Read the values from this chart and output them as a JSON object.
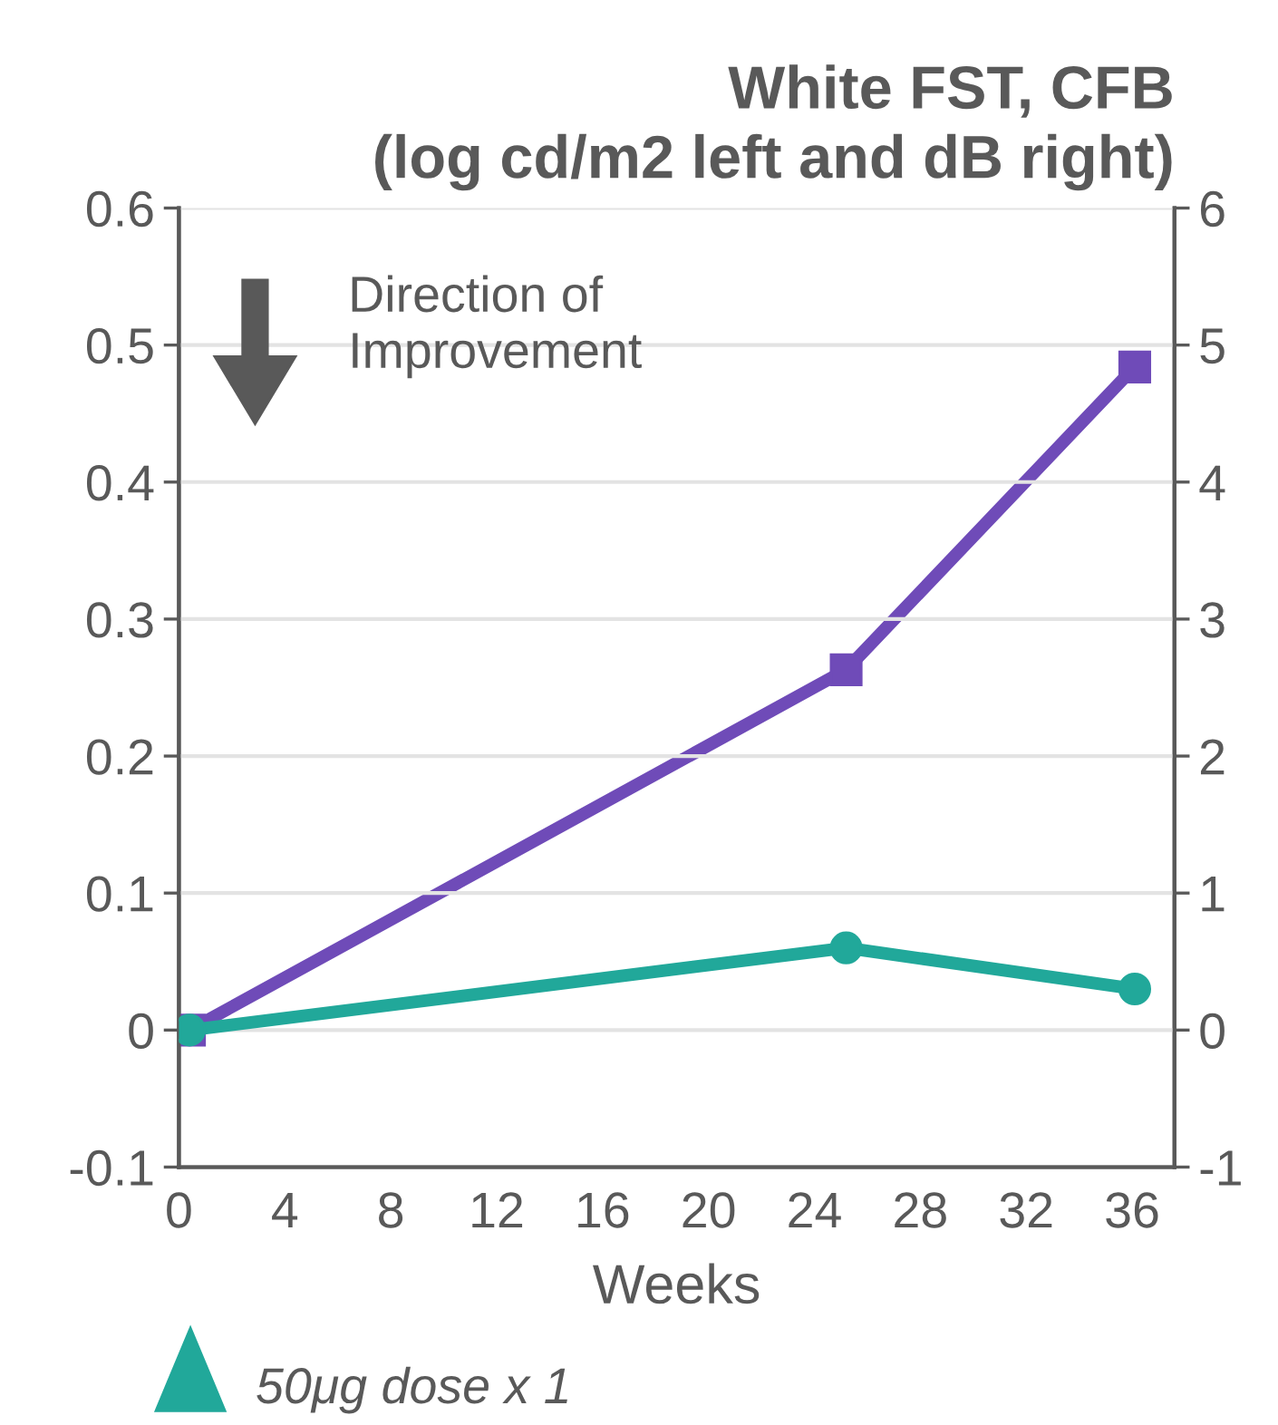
{
  "chart_data": {
    "type": "line",
    "title": "White FST, CFB\n(log cd/m2 left and dB right)",
    "xlabel": "Weeks",
    "x": [
      0.4,
      25.2,
      36.1
    ],
    "series": [
      {
        "color": "#21a89a",
        "values": [
          0,
          0.06,
          0.03
        ],
        "marker": "circle"
      },
      {
        "color": "#6f4bb8",
        "values": [
          0,
          2.63,
          4.84
        ],
        "axis": "y2",
        "marker": "square"
      }
    ],
    "xlim": [
      0,
      37.6
    ],
    "xticks": [
      0,
      4,
      8,
      12,
      16,
      20,
      24,
      28,
      32,
      36
    ],
    "ylim": [
      -0.1,
      0.6
    ],
    "yticks": [
      -0.1,
      0,
      0.1,
      0.2,
      0.3,
      0.4,
      0.5,
      0.6
    ],
    "y2lim": [
      -1,
      6
    ],
    "y2ticks": [
      -1,
      0,
      1,
      2,
      3,
      4,
      5,
      6
    ],
    "grid": "y",
    "legend": false,
    "line_style": "solid",
    "annotations": [
      "Direction of\nImprovement",
      "50μg dose x 1"
    ]
  }
}
